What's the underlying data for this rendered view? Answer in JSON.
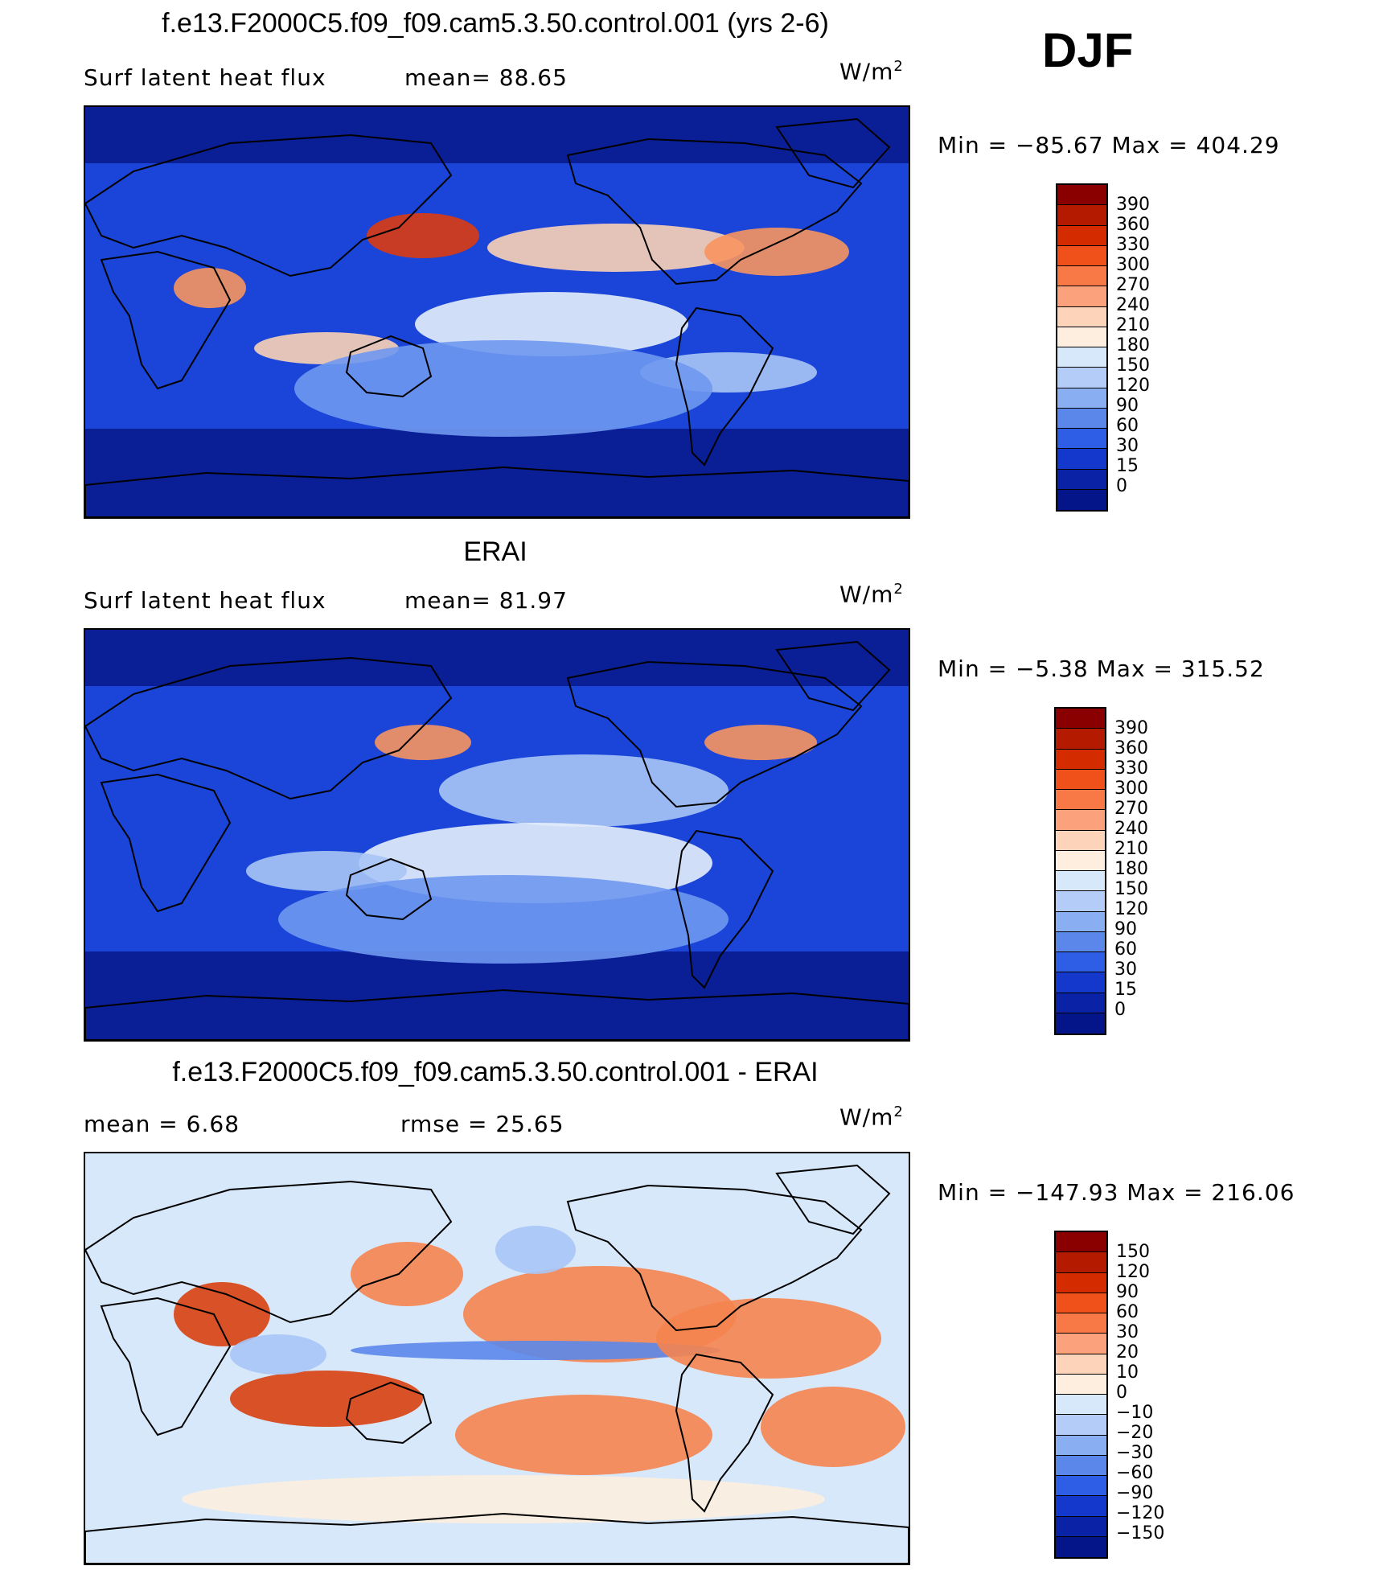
{
  "season": "DJF",
  "panels": [
    {
      "title": "f.e13.F2000C5.f09_f09.cam5.3.50.control.001 (yrs 2-6)",
      "left_label": "Surf latent heat flux",
      "center_label": "mean= 88.65",
      "units_base": "W/m",
      "units_exp": "2",
      "minmax": "Min = −85.67 Max = 404.29",
      "colorbar_ticks": [
        "390",
        "360",
        "330",
        "300",
        "270",
        "240",
        "210",
        "180",
        "150",
        "120",
        "90",
        "60",
        "30",
        "15",
        "0"
      ],
      "colorbar_colors": [
        "#8a0000",
        "#b31a00",
        "#d42c00",
        "#f0501a",
        "#f87846",
        "#fba27c",
        "#fdd3ba",
        "#fdeedf",
        "#d8e8fb",
        "#b4cdf8",
        "#8aaef2",
        "#5b87ea",
        "#2e5de6",
        "#1538cc",
        "#0a22a6",
        "#041489"
      ],
      "map_palette": {
        "low": "#0a1e96",
        "midlow": "#1a45d8",
        "mid": "#6f98f0",
        "mid2": "#a9c5f6",
        "neutral": "#e6eefb",
        "high": "#fbd2b6",
        "higher": "#f7935f",
        "highest": "#dc3b12"
      }
    },
    {
      "title": "ERAI",
      "left_label": "Surf latent heat flux",
      "center_label": "mean= 81.97",
      "units_base": "W/m",
      "units_exp": "2",
      "minmax": "Min = −5.38 Max = 315.52",
      "colorbar_ticks": [
        "390",
        "360",
        "330",
        "300",
        "270",
        "240",
        "210",
        "180",
        "150",
        "120",
        "90",
        "60",
        "30",
        "15",
        "0"
      ],
      "colorbar_colors": [
        "#8a0000",
        "#b31a00",
        "#d42c00",
        "#f0501a",
        "#f87846",
        "#fba27c",
        "#fdd3ba",
        "#fdeedf",
        "#d8e8fb",
        "#b4cdf8",
        "#8aaef2",
        "#5b87ea",
        "#2e5de6",
        "#1538cc",
        "#0a22a6",
        "#041489"
      ],
      "map_palette": {
        "low": "#0a1e96",
        "midlow": "#1a45d8",
        "mid": "#6f98f0",
        "mid2": "#a9c5f6",
        "neutral": "#e6eefb",
        "high": "#fbd2b6",
        "higher": "#f7935f",
        "highest": "#dc3b12"
      }
    },
    {
      "title": "f.e13.F2000C5.f09_f09.cam5.3.50.control.001 - ERAI",
      "left_label": "mean = 6.68",
      "center_label": "rmse = 25.65",
      "units_base": "W/m",
      "units_exp": "2",
      "minmax": "Min = −147.93 Max = 216.06",
      "colorbar_ticks": [
        "150",
        "120",
        "90",
        "60",
        "30",
        "20",
        "10",
        "0",
        "−10",
        "−20",
        "−30",
        "−60",
        "−90",
        "−120",
        "−150"
      ],
      "colorbar_colors": [
        "#8a0000",
        "#b31a00",
        "#d42c00",
        "#f0501a",
        "#f87846",
        "#fba27c",
        "#fdd3ba",
        "#fdeedf",
        "#d8e8fb",
        "#b4cdf8",
        "#8aaef2",
        "#5b87ea",
        "#2e5de6",
        "#1538cc",
        "#0a22a6",
        "#041489"
      ],
      "map_palette": {
        "low": "#5b87ea",
        "midlow": "#a9c5f6",
        "mid": "#d8e8fb",
        "mid2": "#eef3fb",
        "neutral": "#fdeedf",
        "high": "#fbc7a6",
        "higher": "#f5844f",
        "highest": "#d8400f"
      }
    }
  ]
}
